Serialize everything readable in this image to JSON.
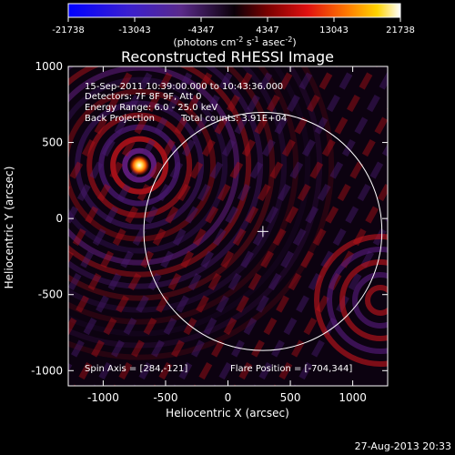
{
  "chart_data": {
    "type": "heatmap",
    "title": "Reconstructed RHESSI Image",
    "xlabel": "Heliocentric X (arcsec)",
    "ylabel": "Heliocentric Y (arcsec)",
    "xlim": [
      -1280,
      1280
    ],
    "ylim": [
      -1100,
      1000
    ],
    "xticks": [
      "-1000",
      "-500",
      "0",
      "500",
      "1000"
    ],
    "xtick_values": [
      -1000,
      -500,
      0,
      500,
      1000
    ],
    "yticks": [
      "1000",
      "500",
      "0",
      "-500",
      "-1000"
    ],
    "ytick_values": [
      1000,
      500,
      0,
      -500,
      -1000
    ],
    "colorbar": {
      "min": -21738,
      "max": 21738,
      "tick_labels": [
        "-21738",
        "-13043",
        "-4347",
        "4347",
        "13043",
        "21738"
      ],
      "tick_values": [
        -21738,
        -13043,
        -4347,
        4347,
        13043,
        21738
      ],
      "units_text": "(photons cm",
      "units_sup1": "-2",
      "units_mid": " s",
      "units_sup2": "-1",
      "units_end": " asec",
      "units_sup3": "-2",
      "units_close": ")"
    },
    "solar_disk_radius_arcsec": 954,
    "sun_center": [
      280,
      -85
    ],
    "source_peak": [
      -710,
      350
    ],
    "annotations": {
      "time_range": "15-Sep-2011 10:39:00.000 to 10:43:36.000",
      "detectors": "Detectors: 7F 8F 9F, Att 0",
      "energy_range": "Energy Range: 6.0 - 25.0 keV",
      "method": "Back Projection",
      "total_counts": "Total counts: 3.91E+04",
      "spin_axis": "Spin Axis = [284,-121]",
      "flare_position": "Flare Position = [-704,344]"
    },
    "grid": false,
    "colormap": "blue-purple-black-red-orange-yellow-white"
  },
  "footer": {
    "timestamp": "27-Aug-2013 20:33"
  }
}
